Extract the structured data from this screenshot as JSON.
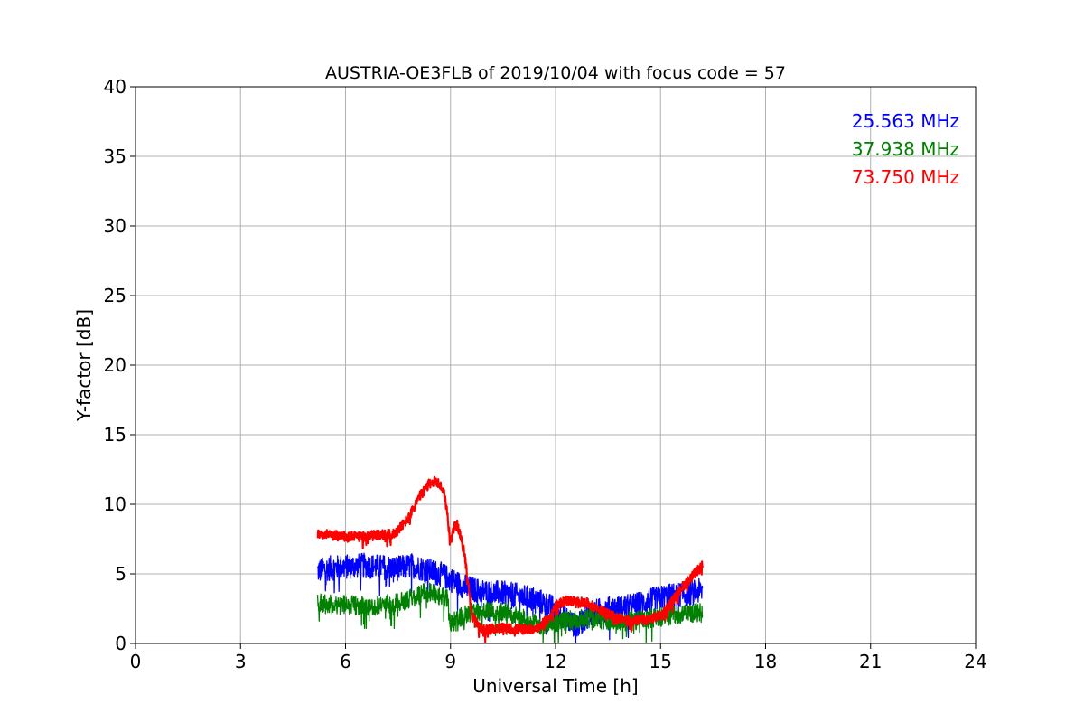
{
  "chart_data": {
    "type": "line",
    "title": "AUSTRIA-OE3FLB of 2019/10/04 with focus code = 57",
    "xlabel": "Universal Time [h]",
    "ylabel": "Y-factor [dB]",
    "xlim": [
      0,
      24
    ],
    "ylim": [
      0,
      40
    ],
    "xticks": [
      0,
      3,
      6,
      9,
      12,
      15,
      18,
      21,
      24
    ],
    "yticks": [
      0,
      5,
      10,
      15,
      20,
      25,
      30,
      35,
      40
    ],
    "grid": true,
    "legend_position": "top-right",
    "series": [
      {
        "name": "25.563 MHz",
        "color": "#0000ff",
        "noise": 0.9,
        "x": [
          5.2,
          5.5,
          6.0,
          6.5,
          7.0,
          7.5,
          7.9,
          8.3,
          8.7,
          9.0,
          9.3,
          9.6,
          10.0,
          10.5,
          11.0,
          11.5,
          11.9,
          12.3,
          12.6,
          13.0,
          13.5,
          14.0,
          14.5,
          15.0,
          15.5,
          16.0,
          16.2
        ],
        "y": [
          5.2,
          5.4,
          5.5,
          5.6,
          5.5,
          5.4,
          5.6,
          5.3,
          5.0,
          4.6,
          4.2,
          3.9,
          3.7,
          3.6,
          3.4,
          3.1,
          2.6,
          1.8,
          1.2,
          2.2,
          2.5,
          2.6,
          2.9,
          3.3,
          3.5,
          3.7,
          3.8
        ]
      },
      {
        "name": "37.938 MHz",
        "color": "#008000",
        "noise": 0.7,
        "x": [
          5.2,
          5.5,
          6.0,
          6.5,
          7.0,
          7.5,
          7.9,
          8.2,
          8.5,
          8.9,
          9.0,
          9.3,
          9.6,
          10.0,
          10.5,
          11.0,
          11.5,
          12.0,
          12.5,
          13.0,
          13.5,
          14.0,
          14.5,
          15.0,
          15.5,
          16.0,
          16.2
        ],
        "y": [
          2.9,
          2.8,
          2.8,
          2.7,
          2.8,
          2.9,
          3.3,
          3.6,
          3.7,
          3.2,
          1.4,
          1.9,
          2.3,
          2.4,
          2.3,
          1.9,
          1.3,
          1.5,
          1.7,
          1.8,
          1.7,
          1.6,
          1.7,
          1.9,
          2.1,
          2.2,
          2.2
        ]
      },
      {
        "name": "73.750 MHz",
        "color": "#ff0000",
        "noise": 0.35,
        "x": [
          5.2,
          5.5,
          6.0,
          6.5,
          7.0,
          7.4,
          7.8,
          8.1,
          8.4,
          8.6,
          8.8,
          8.9,
          9.0,
          9.1,
          9.2,
          9.3,
          9.4,
          9.5,
          9.6,
          9.8,
          10.0,
          10.5,
          11.0,
          11.5,
          11.8,
          12.0,
          12.3,
          12.6,
          12.9,
          13.2,
          13.5,
          13.8,
          14.2,
          14.6,
          15.0,
          15.3,
          15.6,
          15.9,
          16.2
        ],
        "y": [
          7.9,
          7.8,
          7.7,
          7.7,
          7.8,
          7.9,
          9.0,
          10.5,
          11.5,
          11.7,
          11.0,
          9.5,
          7.2,
          8.4,
          8.5,
          7.5,
          6.4,
          4.5,
          2.0,
          1.2,
          1.0,
          1.1,
          1.0,
          1.1,
          1.8,
          2.7,
          3.1,
          3.0,
          2.9,
          2.5,
          2.1,
          1.8,
          1.6,
          1.7,
          2.0,
          2.9,
          4.0,
          4.8,
          5.6
        ]
      }
    ]
  }
}
